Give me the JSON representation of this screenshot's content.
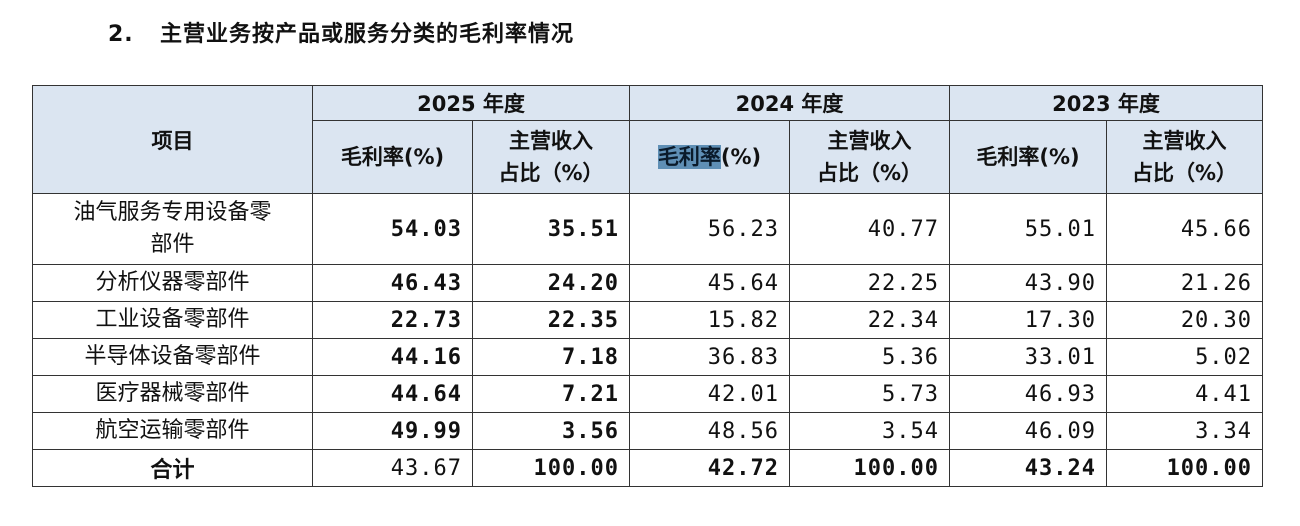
{
  "heading": {
    "number": "2.",
    "text": "主营业务按产品或服务分类的毛利率情况"
  },
  "table": {
    "item_header": "项目",
    "years": [
      "2025 年度",
      "2024 年度",
      "2023 年度"
    ],
    "sub_headers": {
      "margin": "毛利率(%)",
      "share_line1": "主营收入",
      "share_line2": "占比（%）"
    },
    "highlighted_header_text": "毛利率",
    "rows": [
      {
        "name": "油气服务专用设备零部件",
        "name_line1": "油气服务专用设备零",
        "name_line2": "部件",
        "values": [
          "54.03",
          "35.51",
          "56.23",
          "40.77",
          "55.01",
          "45.66"
        ]
      },
      {
        "name": "分析仪器零部件",
        "values": [
          "46.43",
          "24.20",
          "45.64",
          "22.25",
          "43.90",
          "21.26"
        ]
      },
      {
        "name": "工业设备零部件",
        "values": [
          "22.73",
          "22.35",
          "15.82",
          "22.34",
          "17.30",
          "20.30"
        ]
      },
      {
        "name": "半导体设备零部件",
        "values": [
          "44.16",
          "7.18",
          "36.83",
          "5.36",
          "33.01",
          "5.02"
        ]
      },
      {
        "name": "医疗器械零部件",
        "values": [
          "44.64",
          "7.21",
          "42.01",
          "5.73",
          "46.93",
          "4.41"
        ]
      },
      {
        "name": "航空运输零部件",
        "values": [
          "49.99",
          "3.56",
          "48.56",
          "3.54",
          "46.09",
          "3.34"
        ]
      }
    ],
    "total": {
      "name": "合计",
      "values": [
        "43.67",
        "100.00",
        "42.72",
        "100.00",
        "43.24",
        "100.00"
      ]
    }
  },
  "colors": {
    "header_bg": "#dbe5f1",
    "border": "#333333",
    "selection_highlight": "#5f8fb5"
  }
}
